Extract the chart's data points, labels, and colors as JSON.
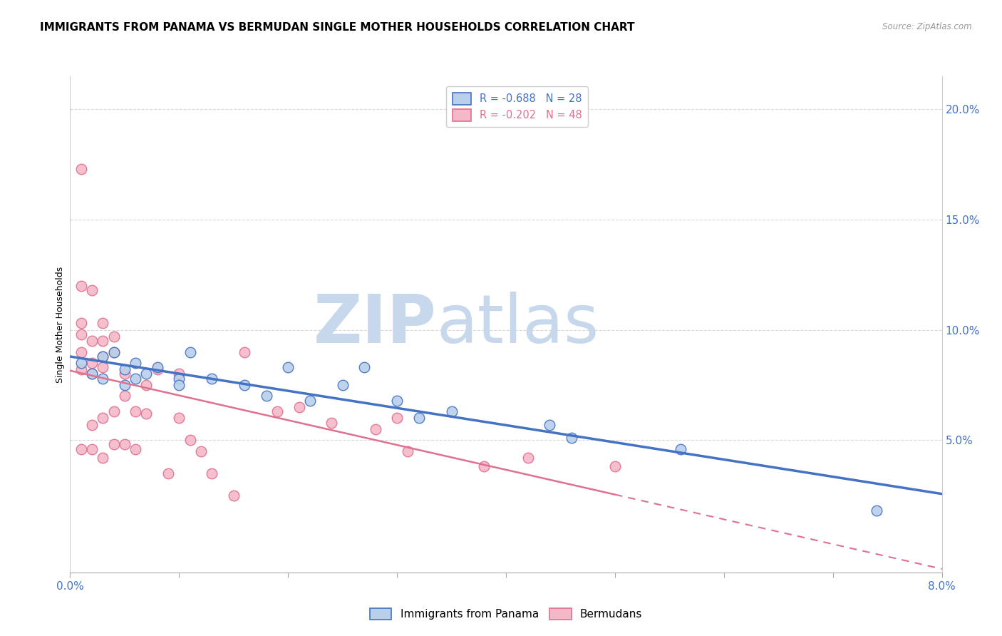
{
  "title": "IMMIGRANTS FROM PANAMA VS BERMUDAN SINGLE MOTHER HOUSEHOLDS CORRELATION CHART",
  "source": "Source: ZipAtlas.com",
  "ylabel": "Single Mother Households",
  "right_yticks": [
    0.0,
    0.05,
    0.1,
    0.15,
    0.2
  ],
  "right_yticklabels": [
    "",
    "5.0%",
    "10.0%",
    "15.0%",
    "20.0%"
  ],
  "xlim": [
    0.0,
    0.08
  ],
  "ylim": [
    -0.01,
    0.215
  ],
  "legend_entries": [
    {
      "label": "R = -0.688   N = 28",
      "color": "#a8c4e0"
    },
    {
      "label": "R = -0.202   N = 48",
      "color": "#f4b8c8"
    }
  ],
  "panama_x": [
    0.001,
    0.002,
    0.003,
    0.003,
    0.004,
    0.005,
    0.005,
    0.006,
    0.006,
    0.007,
    0.008,
    0.01,
    0.01,
    0.011,
    0.013,
    0.016,
    0.018,
    0.02,
    0.022,
    0.025,
    0.027,
    0.03,
    0.032,
    0.035,
    0.044,
    0.046,
    0.056,
    0.074
  ],
  "panama_y": [
    0.085,
    0.08,
    0.088,
    0.078,
    0.09,
    0.082,
    0.075,
    0.085,
    0.078,
    0.08,
    0.083,
    0.078,
    0.075,
    0.09,
    0.078,
    0.075,
    0.07,
    0.083,
    0.068,
    0.075,
    0.083,
    0.068,
    0.06,
    0.063,
    0.057,
    0.051,
    0.046,
    0.018
  ],
  "bermuda_x": [
    0.001,
    0.001,
    0.001,
    0.001,
    0.001,
    0.001,
    0.001,
    0.002,
    0.002,
    0.002,
    0.002,
    0.002,
    0.002,
    0.003,
    0.003,
    0.003,
    0.003,
    0.003,
    0.003,
    0.004,
    0.004,
    0.004,
    0.004,
    0.005,
    0.005,
    0.005,
    0.006,
    0.006,
    0.007,
    0.007,
    0.008,
    0.009,
    0.01,
    0.01,
    0.011,
    0.012,
    0.013,
    0.015,
    0.016,
    0.019,
    0.021,
    0.024,
    0.028,
    0.03,
    0.031,
    0.038,
    0.042,
    0.05
  ],
  "bermuda_y": [
    0.173,
    0.12,
    0.103,
    0.098,
    0.09,
    0.082,
    0.046,
    0.118,
    0.095,
    0.085,
    0.08,
    0.057,
    0.046,
    0.103,
    0.095,
    0.088,
    0.083,
    0.06,
    0.042,
    0.097,
    0.09,
    0.063,
    0.048,
    0.08,
    0.07,
    0.048,
    0.063,
    0.046,
    0.075,
    0.062,
    0.082,
    0.035,
    0.08,
    0.06,
    0.05,
    0.045,
    0.035,
    0.025,
    0.09,
    0.063,
    0.065,
    0.058,
    0.055,
    0.06,
    0.045,
    0.038,
    0.042,
    0.038
  ],
  "blue_line_color": "#4472c4",
  "pink_line_color": "#e07090",
  "blue_scatter_facecolor": "#b8d0ea",
  "pink_scatter_facecolor": "#f4b8c8",
  "blue_scatter_edge": "#4472c4",
  "pink_scatter_edge": "#e07090",
  "watermark_zip": "ZIP",
  "watermark_atlas": "atlas",
  "watermark_color": "#c8d8ec",
  "title_fontsize": 11,
  "axis_label_fontsize": 9,
  "scatter_size": 110
}
